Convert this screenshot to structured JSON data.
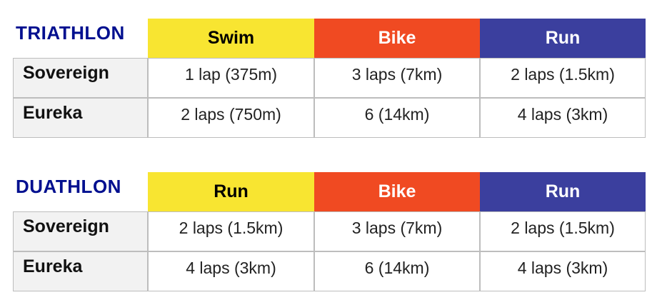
{
  "colors": {
    "title": "#000f8f",
    "swim": "#f8e531",
    "bike": "#f04a22",
    "run": "#3b3f9e",
    "label_bg": "#f2f2f2",
    "border": "#bdbdbd"
  },
  "triathlon": {
    "title": "TRIATHLON",
    "headers": [
      {
        "label": "Swim",
        "bg": "#f8e531",
        "fg": "#000000"
      },
      {
        "label": "Bike",
        "bg": "#f04a22",
        "fg": "#ffffff"
      },
      {
        "label": "Run",
        "bg": "#3b3f9e",
        "fg": "#ffffff"
      }
    ],
    "rows": [
      {
        "label": "Sovereign",
        "cells": [
          "1 lap (375m)",
          "3 laps (7km)",
          "2 laps (1.5km)"
        ]
      },
      {
        "label": "Eureka",
        "cells": [
          "2 laps (750m)",
          "6 (14km)",
          "4 laps (3km)"
        ]
      }
    ]
  },
  "duathlon": {
    "title": "DUATHLON",
    "headers": [
      {
        "label": "Run",
        "bg": "#f8e531",
        "fg": "#000000"
      },
      {
        "label": "Bike",
        "bg": "#f04a22",
        "fg": "#ffffff"
      },
      {
        "label": "Run",
        "bg": "#3b3f9e",
        "fg": "#ffffff"
      }
    ],
    "rows": [
      {
        "label": "Sovereign",
        "cells": [
          "2 laps (1.5km)",
          "3 laps (7km)",
          "2 laps (1.5km)"
        ]
      },
      {
        "label": "Eureka",
        "cells": [
          "4 laps (3km)",
          "6 (14km)",
          "4 laps (3km)"
        ]
      }
    ]
  }
}
